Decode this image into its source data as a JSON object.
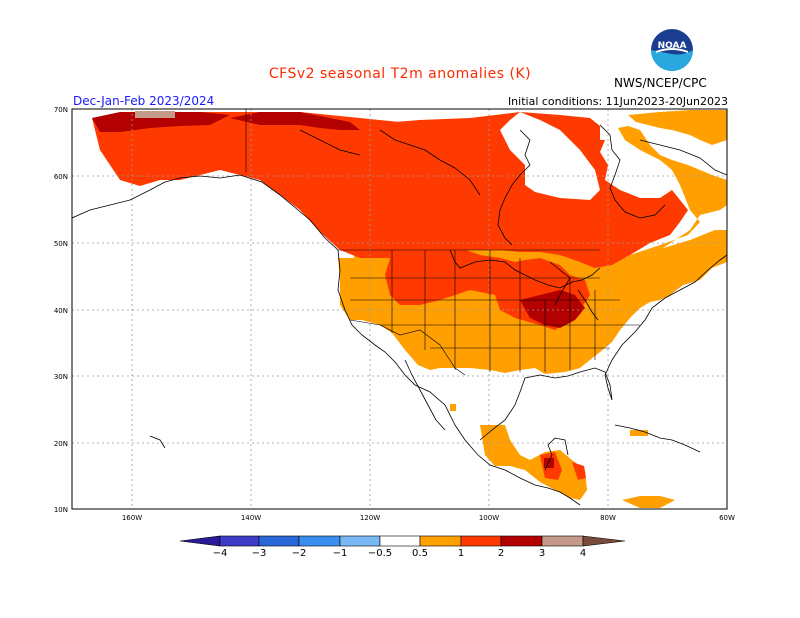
{
  "header": {
    "title": "CFSv2 seasonal T2m anomalies (K)",
    "period": "Dec-Jan-Feb 2023/2024",
    "initial_conditions": "Initial conditions: 11Jun2023-20Jun2023",
    "agency": "NWS/NCEP/CPC",
    "logo_text": "NOAA"
  },
  "map": {
    "lat_labels": [
      "70N",
      "60N",
      "50N",
      "40N",
      "30N",
      "20N",
      "10N"
    ],
    "lon_labels": [
      "160W",
      "140W",
      "120W",
      "100W",
      "80W",
      "60W"
    ]
  },
  "colorbar": {
    "labels": [
      "−4",
      "−3",
      "−2",
      "−1",
      "−0.5",
      "0.5",
      "1",
      "2",
      "3",
      "4"
    ],
    "bins": [
      {
        "range": "< -4",
        "color": "#2a1a99"
      },
      {
        "range": "-4 to -3",
        "color": "#3d3dc7"
      },
      {
        "range": "-3 to -2",
        "color": "#2a66d6"
      },
      {
        "range": "-2 to -1",
        "color": "#3a8ef0"
      },
      {
        "range": "-1 to -0.5",
        "color": "#7ab8f5"
      },
      {
        "range": "-0.5 to 0.5",
        "color": "#ffffff"
      },
      {
        "range": "0.5 to 1",
        "color": "#ff9f00"
      },
      {
        "range": "1 to 2",
        "color": "#ff3a00"
      },
      {
        "range": "2 to 3",
        "color": "#b30000"
      },
      {
        "range": "3 to 4",
        "color": "#c49a8a"
      },
      {
        "range": "> 4",
        "color": "#7a4a3a"
      }
    ]
  },
  "colors": {
    "anom_0_5_to_1": "#ff9f00",
    "anom_1_to_2": "#ff3a00",
    "anom_2_to_3": "#b30000",
    "anom_3_to_4": "#c49a8a"
  }
}
